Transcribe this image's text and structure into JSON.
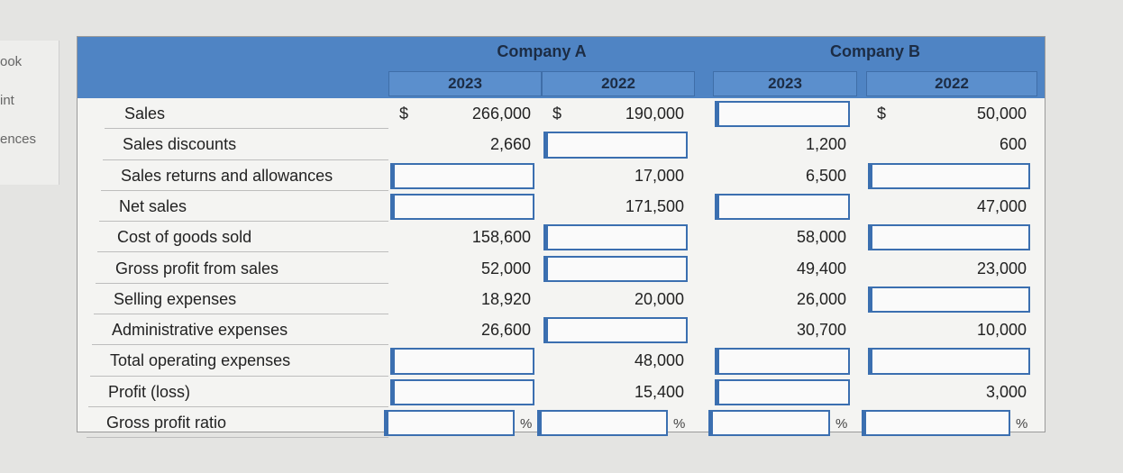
{
  "sidebar": [
    "ook",
    "int",
    "ences"
  ],
  "table": {
    "groups": [
      "Company A",
      "Company B"
    ],
    "years": [
      "2023",
      "2022",
      "2023",
      "2022"
    ],
    "rows": [
      {
        "label": "Sales",
        "cells": [
          {
            "prefix": "$",
            "value": "266,000"
          },
          {
            "prefix": "$",
            "value": "190,000"
          },
          null,
          {
            "prefix": "$",
            "value": "50,000"
          }
        ]
      },
      {
        "label": "Sales discounts",
        "cells": [
          "2,660",
          null,
          "1,200",
          "600"
        ]
      },
      {
        "label": "Sales returns and allowances",
        "cells": [
          null,
          "17,000",
          "6,500",
          null
        ]
      },
      {
        "label": "Net sales",
        "cells": [
          null,
          "171,500",
          null,
          "47,000"
        ]
      },
      {
        "label": "Cost of goods sold",
        "cells": [
          "158,600",
          null,
          "58,000",
          null
        ]
      },
      {
        "label": "Gross profit from sales",
        "cells": [
          "52,000",
          null,
          "49,400",
          "23,000"
        ]
      },
      {
        "label": "Selling expenses",
        "cells": [
          "18,920",
          "20,000",
          "26,000",
          null
        ]
      },
      {
        "label": "Administrative expenses",
        "cells": [
          "26,600",
          null,
          "30,700",
          "10,000"
        ]
      },
      {
        "label": "Total operating expenses",
        "cells": [
          null,
          "48,000",
          null,
          null
        ]
      },
      {
        "label": "Profit (loss)",
        "cells": [
          null,
          "15,400",
          null,
          "3,000"
        ]
      },
      {
        "label": "Gross profit ratio",
        "cells": [
          {
            "suffix": "%"
          },
          {
            "suffix": "%"
          },
          {
            "suffix": "%"
          },
          {
            "suffix": "%"
          }
        ]
      }
    ]
  }
}
